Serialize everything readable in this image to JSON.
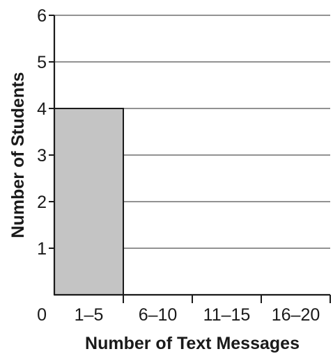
{
  "chart_data": {
    "type": "bar",
    "title": "",
    "xlabel": "Number of Text Messages",
    "ylabel": "Number of Students",
    "categories": [
      "1–5",
      "6–10",
      "11–15",
      "16–20"
    ],
    "values": [
      4,
      0,
      0,
      0
    ],
    "ylim": [
      0,
      6
    ],
    "yticks": [
      "0",
      "1",
      "2",
      "3",
      "4",
      "5",
      "6"
    ],
    "grid": true,
    "bar_color": "#c4c4c4",
    "bar_edge_color": "#1a1a1a",
    "grid_color": "#6e6e6e",
    "axis_color": "#1a1a1a"
  }
}
